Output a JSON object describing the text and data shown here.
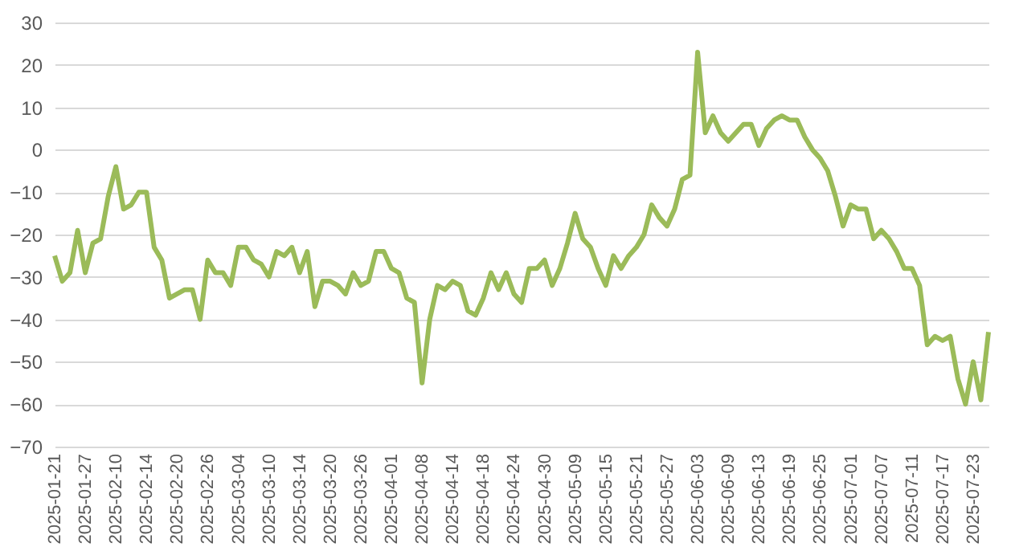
{
  "chart_data": {
    "type": "line",
    "categories": [
      "2025-01-21",
      null,
      null,
      null,
      "2025-01-27",
      null,
      null,
      null,
      "2025-02-10",
      null,
      null,
      null,
      "2025-02-14",
      null,
      null,
      null,
      "2025-02-20",
      null,
      null,
      null,
      "2025-02-26",
      null,
      null,
      null,
      "2025-03-04",
      null,
      null,
      null,
      "2025-03-10",
      null,
      null,
      null,
      "2025-03-14",
      null,
      null,
      null,
      "2025-03-20",
      null,
      null,
      null,
      "2025-03-26",
      null,
      null,
      null,
      "2025-04-01",
      null,
      null,
      null,
      "2025-04-08",
      null,
      null,
      null,
      "2025-04-14",
      null,
      null,
      null,
      "2025-04-18",
      null,
      null,
      null,
      "2025-04-24",
      null,
      null,
      null,
      "2025-04-30",
      null,
      null,
      null,
      "2025-05-09",
      null,
      null,
      null,
      "2025-05-15",
      null,
      null,
      null,
      "2025-05-21",
      null,
      null,
      null,
      "2025-05-27",
      null,
      null,
      null,
      "2025-06-03",
      null,
      null,
      null,
      "2025-06-09",
      null,
      null,
      null,
      "2025-06-13",
      null,
      null,
      null,
      "2025-06-19",
      null,
      null,
      null,
      "2025-06-25",
      null,
      null,
      null,
      "2025-07-01",
      null,
      null,
      null,
      "2025-07-07",
      null,
      null,
      null,
      "2025-07-11",
      null,
      null,
      null,
      "2025-07-17",
      null,
      null,
      null,
      "2025-07-23",
      null,
      null
    ],
    "series": [
      {
        "color": "#9bbb59",
        "values": [
          -25,
          -31,
          -29,
          -19,
          -29,
          -22,
          -21,
          -11,
          -4,
          -14,
          -13,
          -10,
          -10,
          -23,
          -26,
          -35,
          -34,
          -33,
          -33,
          -40,
          -26,
          -29,
          -29,
          -32,
          -23,
          -23,
          -26,
          -27,
          -30,
          -24,
          -25,
          -23,
          -29,
          -24,
          -37,
          -31,
          -31,
          -32,
          -34,
          -29,
          -32,
          -31,
          -24,
          -24,
          -28,
          -29,
          -35,
          -36,
          -55,
          -40,
          -32,
          -33,
          -31,
          -32,
          -38,
          -39,
          -35,
          -29,
          -33,
          -29,
          -34,
          -36,
          -28,
          -28,
          -26,
          -32,
          -28,
          -22,
          -15,
          -21,
          -23,
          -28,
          -32,
          -25,
          -28,
          -25,
          -23,
          -20,
          -13,
          -16,
          -18,
          -14,
          -7,
          -6,
          23,
          4,
          8,
          4,
          2,
          4,
          6,
          6,
          1,
          5,
          7,
          8,
          7,
          7,
          3,
          0,
          -2,
          -5,
          -11,
          -18,
          -13,
          -14,
          -14,
          -21,
          -19,
          -21,
          -24,
          -28,
          -28,
          -32,
          -46,
          -44,
          -45,
          -44,
          -54,
          -60,
          -50,
          -59,
          -43
        ]
      }
    ],
    "ylim": [
      -70,
      30
    ],
    "yticks": [
      -70,
      -60,
      -50,
      -40,
      -30,
      -20,
      -10,
      0,
      10,
      20,
      30
    ],
    "grid": "y",
    "marker": "none",
    "line_style": "solid"
  }
}
